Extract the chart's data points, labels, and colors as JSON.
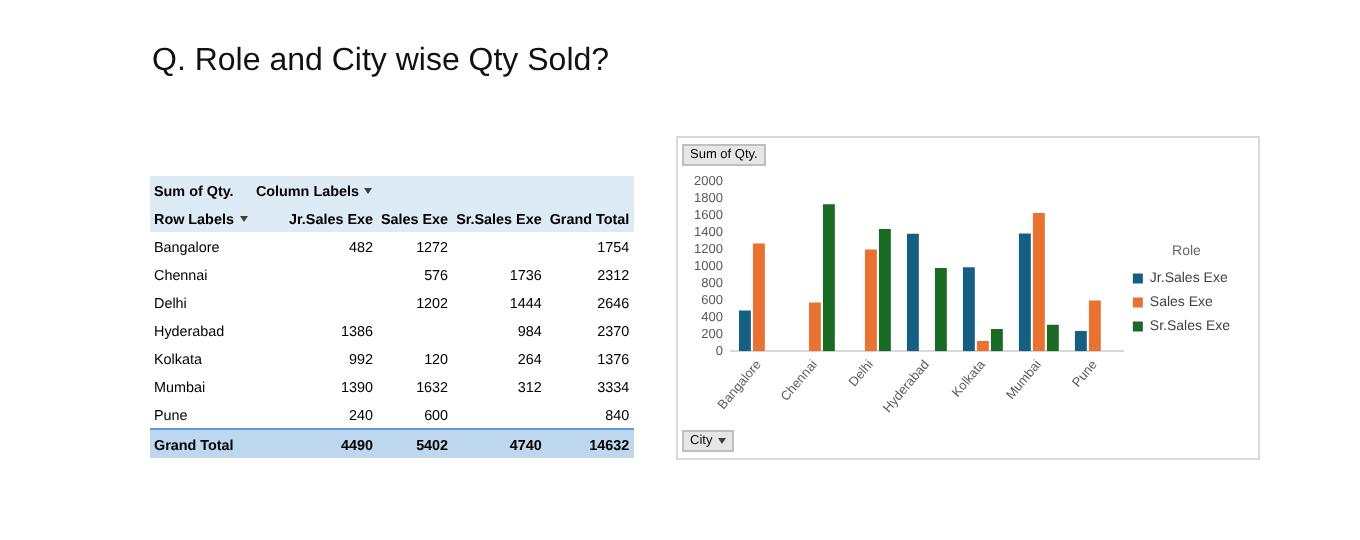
{
  "chart_data": [
    {
      "type": "heatmap",
      "title": "Q. Role and City wise Qty Sold?",
      "xlabel": "Column Labels",
      "ylabel": "Row Labels",
      "annotations": [
        "Sum of Qty."
      ],
      "categories": [
        "Jr.Sales Exe",
        "Sales Exe",
        "Sr.Sales Exe",
        "Grand Total"
      ],
      "y_categories": [
        "Bangalore",
        "Chennai",
        "Delhi",
        "Hyderabad",
        "Kolkata",
        "Mumbai",
        "Pune",
        "Grand Total"
      ],
      "cells": [
        [
          482,
          1272,
          null,
          1754
        ],
        [
          null,
          576,
          1736,
          2312
        ],
        [
          null,
          1202,
          1444,
          2646
        ],
        [
          1386,
          null,
          984,
          2370
        ],
        [
          992,
          120,
          264,
          1376
        ],
        [
          1390,
          1632,
          312,
          3334
        ],
        [
          240,
          600,
          null,
          840
        ],
        [
          4490,
          5402,
          4740,
          14632
        ]
      ],
      "data_labels": true
    },
    {
      "type": "bar",
      "ylabel": "Sum of Qty.",
      "xlabel": "City",
      "legend_title": "Role",
      "categories": [
        "Bangalore",
        "Chennai",
        "Delhi",
        "Hyderabad",
        "Kolkata",
        "Mumbai",
        "Pune"
      ],
      "series": [
        {
          "name": "Jr.Sales Exe",
          "color": "#156082",
          "values": [
            482,
            null,
            null,
            1386,
            992,
            1390,
            240
          ]
        },
        {
          "name": "Sales Exe",
          "color": "#e97132",
          "values": [
            1272,
            576,
            1202,
            null,
            120,
            1632,
            600
          ]
        },
        {
          "name": "Sr.Sales Exe",
          "color": "#196b24",
          "values": [
            null,
            1736,
            1444,
            984,
            264,
            312,
            null
          ]
        }
      ],
      "ylim": [
        0,
        2000
      ],
      "yticks": [
        0,
        200,
        400,
        600,
        800,
        1000,
        1200,
        1400,
        1600,
        1800,
        2000
      ],
      "grid": false,
      "legend": "right"
    }
  ]
}
